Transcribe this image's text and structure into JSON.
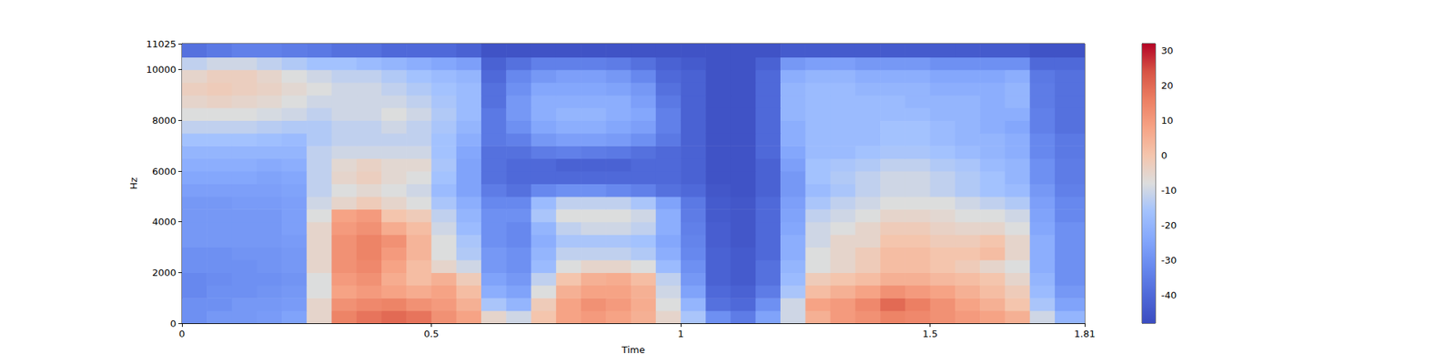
{
  "chart_data": {
    "type": "heatmap",
    "x_label": "Time",
    "y_label": "Hz",
    "xlim": [
      0,
      1.81
    ],
    "xticks": [
      0,
      0.5,
      1,
      1.5
    ],
    "ylim": [
      0,
      11025
    ],
    "yticks": [
      0,
      2000,
      4000,
      6000,
      8000,
      10000
    ],
    "tick_labels": true,
    "grid": false,
    "time_edges": [
      0,
      0.05,
      0.1,
      0.15,
      0.2,
      0.25,
      0.3,
      0.35,
      0.4,
      0.45,
      0.5,
      0.55,
      0.6,
      0.65,
      0.7,
      0.75,
      0.8,
      0.85,
      0.9,
      0.95,
      1,
      1.05,
      1.1,
      1.15,
      1.2,
      1.25,
      1.3,
      1.35,
      1.4,
      1.45,
      1.5,
      1.55,
      1.6,
      1.65,
      1.7,
      1.75,
      1.81
    ],
    "freq_edges": [
      0,
      500,
      1000,
      1500,
      2000,
      2500,
      3000,
      3500,
      4000,
      4500,
      5000,
      5500,
      6000,
      6500,
      7000,
      7500,
      8000,
      8500,
      9000,
      9500,
      10000,
      10500,
      11025
    ],
    "cells": [
      [
        -30,
        -28,
        -28,
        -27,
        -25,
        -5,
        15,
        18,
        20,
        18,
        12,
        8,
        -5,
        -10,
        0,
        8,
        10,
        8,
        5,
        -5,
        -15,
        -30,
        -35,
        -25,
        -10,
        5,
        10,
        12,
        15,
        14,
        12,
        10,
        8,
        5,
        -10,
        -20
      ],
      [
        -30,
        -30,
        -28,
        -28,
        -27,
        -5,
        12,
        14,
        15,
        12,
        10,
        5,
        -15,
        -20,
        -2,
        8,
        12,
        10,
        6,
        -8,
        -20,
        -38,
        -40,
        -30,
        -10,
        8,
        10,
        14,
        20,
        16,
        12,
        8,
        5,
        0,
        -15,
        -25
      ],
      [
        -32,
        -30,
        -30,
        -29,
        -28,
        -8,
        8,
        10,
        8,
        6,
        8,
        2,
        -22,
        -25,
        -8,
        5,
        8,
        8,
        5,
        -10,
        -25,
        -40,
        -42,
        -35,
        -15,
        2,
        5,
        8,
        12,
        10,
        8,
        5,
        2,
        -2,
        -18,
        -28
      ],
      [
        -32,
        -31,
        -30,
        -30,
        -29,
        -8,
        10,
        12,
        6,
        2,
        5,
        -2,
        -25,
        -28,
        -12,
        0,
        5,
        6,
        2,
        -12,
        -28,
        -42,
        -44,
        -38,
        -18,
        -2,
        0,
        2,
        5,
        5,
        3,
        2,
        0,
        -5,
        -20,
        -30
      ],
      [
        -30,
        -30,
        -30,
        -29,
        -28,
        -5,
        12,
        14,
        8,
        2,
        -5,
        -10,
        -28,
        -30,
        -18,
        -8,
        -5,
        -5,
        -8,
        -18,
        -30,
        -42,
        -44,
        -38,
        -20,
        -8,
        -5,
        -2,
        2,
        2,
        0,
        -2,
        -5,
        -8,
        -22,
        -30
      ],
      [
        -30,
        -30,
        -29,
        -29,
        -28,
        -5,
        12,
        15,
        10,
        4,
        -8,
        -14,
        -28,
        -30,
        -20,
        -12,
        -12,
        -12,
        -14,
        -22,
        -32,
        -42,
        -44,
        -40,
        -22,
        -8,
        -5,
        -2,
        2,
        2,
        0,
        0,
        2,
        -5,
        -22,
        -30
      ],
      [
        -28,
        -28,
        -28,
        -28,
        -27,
        -5,
        12,
        15,
        12,
        4,
        -8,
        -15,
        -30,
        -32,
        -22,
        -15,
        -15,
        -15,
        -16,
        -24,
        -33,
        -43,
        -45,
        -40,
        -22,
        -10,
        -5,
        -5,
        0,
        0,
        -2,
        -2,
        0,
        -5,
        -22,
        -30
      ],
      [
        -28,
        -28,
        -28,
        -28,
        -26,
        -5,
        10,
        12,
        6,
        2,
        -10,
        -18,
        -30,
        -32,
        -20,
        -12,
        -10,
        -10,
        -12,
        -22,
        -34,
        -43,
        -45,
        -40,
        -24,
        -10,
        -8,
        -5,
        -2,
        -2,
        -4,
        -5,
        -5,
        -8,
        -24,
        -30
      ],
      [
        -28,
        -28,
        -28,
        -28,
        -26,
        -8,
        8,
        10,
        0,
        -2,
        -12,
        -20,
        -30,
        -30,
        -15,
        -8,
        -8,
        -8,
        -10,
        -22,
        -35,
        -44,
        -45,
        -40,
        -25,
        -12,
        -10,
        -8,
        -5,
        -5,
        -6,
        -8,
        -8,
        -10,
        -25,
        -32
      ],
      [
        -28,
        -28,
        -27,
        -27,
        -26,
        -10,
        -5,
        -2,
        -5,
        -8,
        -15,
        -22,
        -32,
        -32,
        -18,
        -12,
        -12,
        -12,
        -15,
        -25,
        -36,
        -44,
        -45,
        -40,
        -26,
        -15,
        -12,
        -10,
        -8,
        -8,
        -8,
        -10,
        -12,
        -14,
        -26,
        -32
      ],
      [
        -26,
        -26,
        -26,
        -26,
        -25,
        -12,
        -8,
        -6,
        -8,
        -10,
        -18,
        -25,
        -35,
        -38,
        -32,
        -30,
        -30,
        -32,
        -34,
        -38,
        -40,
        -45,
        -46,
        -42,
        -28,
        -18,
        -15,
        -12,
        -10,
        -10,
        -12,
        -14,
        -16,
        -18,
        -28,
        -34
      ],
      [
        -24,
        -24,
        -24,
        -25,
        -24,
        -12,
        -5,
        -3,
        -6,
        -8,
        -16,
        -25,
        -38,
        -40,
        -40,
        -40,
        -40,
        -40,
        -40,
        -40,
        -42,
        -46,
        -46,
        -42,
        -28,
        -16,
        -14,
        -12,
        -10,
        -10,
        -12,
        -14,
        -16,
        -20,
        -30,
        -35
      ],
      [
        -22,
        -22,
        -22,
        -23,
        -22,
        -12,
        -6,
        -4,
        -6,
        -6,
        -15,
        -25,
        -38,
        -40,
        -40,
        -42,
        -42,
        -42,
        -40,
        -40,
        -42,
        -46,
        -46,
        -42,
        -26,
        -16,
        -15,
        -14,
        -12,
        -12,
        -14,
        -15,
        -18,
        -20,
        -30,
        -35
      ],
      [
        -20,
        -20,
        -20,
        -20,
        -20,
        -12,
        -10,
        -10,
        -10,
        -10,
        -16,
        -24,
        -38,
        -38,
        -35,
        -34,
        -35,
        -36,
        -38,
        -40,
        -42,
        -46,
        -46,
        -40,
        -24,
        -18,
        -18,
        -16,
        -15,
        -15,
        -16,
        -18,
        -20,
        -22,
        -32,
        -36
      ],
      [
        -16,
        -16,
        -16,
        -17,
        -18,
        -14,
        -12,
        -12,
        -12,
        -12,
        -16,
        -22,
        -36,
        -34,
        -28,
        -26,
        -26,
        -27,
        -30,
        -36,
        -42,
        -46,
        -46,
        -40,
        -22,
        -18,
        -18,
        -18,
        -16,
        -16,
        -18,
        -20,
        -20,
        -22,
        -32,
        -36
      ],
      [
        -12,
        -12,
        -12,
        -13,
        -14,
        -14,
        -12,
        -12,
        -10,
        -12,
        -15,
        -20,
        -36,
        -30,
        -24,
        -22,
        -22,
        -24,
        -26,
        -34,
        -42,
        -46,
        -46,
        -40,
        -22,
        -18,
        -18,
        -18,
        -16,
        -16,
        -18,
        -20,
        -22,
        -24,
        -34,
        -38
      ],
      [
        -8,
        -8,
        -8,
        -9,
        -10,
        -12,
        -10,
        -10,
        -8,
        -10,
        -14,
        -18,
        -36,
        -28,
        -22,
        -20,
        -20,
        -22,
        -24,
        -34,
        -42,
        -46,
        -46,
        -40,
        -20,
        -18,
        -18,
        -18,
        -18,
        -18,
        -20,
        -20,
        -22,
        -22,
        -34,
        -38
      ],
      [
        -5,
        -4,
        -5,
        -6,
        -8,
        -10,
        -10,
        -10,
        -10,
        -12,
        -15,
        -18,
        -38,
        -28,
        -22,
        -22,
        -22,
        -22,
        -26,
        -36,
        -42,
        -46,
        -46,
        -40,
        -20,
        -18,
        -18,
        -18,
        -18,
        -20,
        -20,
        -20,
        -22,
        -20,
        -35,
        -38
      ],
      [
        -3,
        -2,
        -3,
        -4,
        -6,
        -8,
        -10,
        -10,
        -12,
        -14,
        -16,
        -18,
        -38,
        -30,
        -24,
        -24,
        -24,
        -25,
        -28,
        -38,
        -42,
        -46,
        -46,
        -40,
        -20,
        -18,
        -18,
        -20,
        -20,
        -20,
        -22,
        -22,
        -22,
        -20,
        -35,
        -38
      ],
      [
        -5,
        -3,
        -3,
        -5,
        -8,
        -10,
        -12,
        -12,
        -14,
        -16,
        -18,
        -20,
        -40,
        -32,
        -28,
        -26,
        -26,
        -28,
        -32,
        -40,
        -42,
        -46,
        -46,
        -40,
        -22,
        -20,
        -20,
        -22,
        -22,
        -22,
        -24,
        -24,
        -24,
        -22,
        -36,
        -38
      ],
      [
        -12,
        -10,
        -10,
        -12,
        -14,
        -16,
        -16,
        -18,
        -20,
        -22,
        -24,
        -26,
        -42,
        -38,
        -34,
        -34,
        -34,
        -35,
        -38,
        -42,
        -44,
        -46,
        -46,
        -42,
        -28,
        -26,
        -26,
        -28,
        -28,
        -28,
        -30,
        -30,
        -30,
        -30,
        -40,
        -40
      ],
      [
        -38,
        -36,
        -34,
        -34,
        -35,
        -36,
        -38,
        -38,
        -40,
        -40,
        -40,
        -42,
        -46,
        -46,
        -46,
        -46,
        -46,
        -46,
        -46,
        -46,
        -46,
        -46,
        -46,
        -46,
        -44,
        -44,
        -44,
        -44,
        -44,
        -44,
        -44,
        -44,
        -44,
        -44,
        -46,
        -46
      ]
    ],
    "colorbar": {
      "range": [
        -48,
        32
      ],
      "ticks": [
        -40,
        -30,
        -20,
        -10,
        0,
        10,
        20,
        30
      ]
    }
  }
}
